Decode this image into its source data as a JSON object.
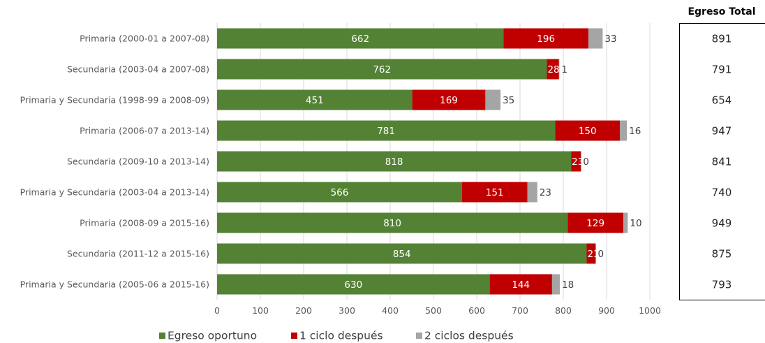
{
  "chart_data": {
    "type": "bar",
    "orientation": "horizontal",
    "stacked": true,
    "categories": [
      "Primaria (2000-01 a 2007-08)",
      "Secundaria (2003-04 a 2007-08)",
      "Primaria y Secundaria (1998-99 a 2008-09)",
      "Primaria (2006-07 a 2013-14)",
      "Secundaria (2009-10 a 2013-14)",
      "Primaria y Secundaria (2003-04 a 2013-14)",
      "Primaria (2008-09 a 2015-16)",
      "Secundaria (2011-12 a 2015-16)",
      "Primaria y Secundaria (2005-06 a 2015-16)"
    ],
    "series": [
      {
        "name": "Egreso oportuno",
        "color": "#548235",
        "values": [
          662,
          762,
          451,
          781,
          818,
          566,
          810,
          854,
          630
        ]
      },
      {
        "name": "1 ciclo después",
        "color": "#C00000",
        "values": [
          196,
          28,
          169,
          150,
          23,
          151,
          129,
          21,
          144
        ]
      },
      {
        "name": "2 ciclos después",
        "color": "#A5A5A5",
        "values": [
          33,
          1,
          35,
          16,
          0,
          23,
          10,
          0,
          18
        ]
      }
    ],
    "xlim": [
      0,
      1000
    ],
    "xticks": [
      "0",
      "100",
      "200",
      "300",
      "400",
      "500",
      "600",
      "700",
      "800",
      "900",
      "1000"
    ],
    "grid": true,
    "legend_position": "bottom",
    "side_table": {
      "title": "Egreso Total",
      "values": [
        "891",
        "791",
        "654",
        "947",
        "841",
        "740",
        "949",
        "875",
        "793"
      ]
    }
  }
}
